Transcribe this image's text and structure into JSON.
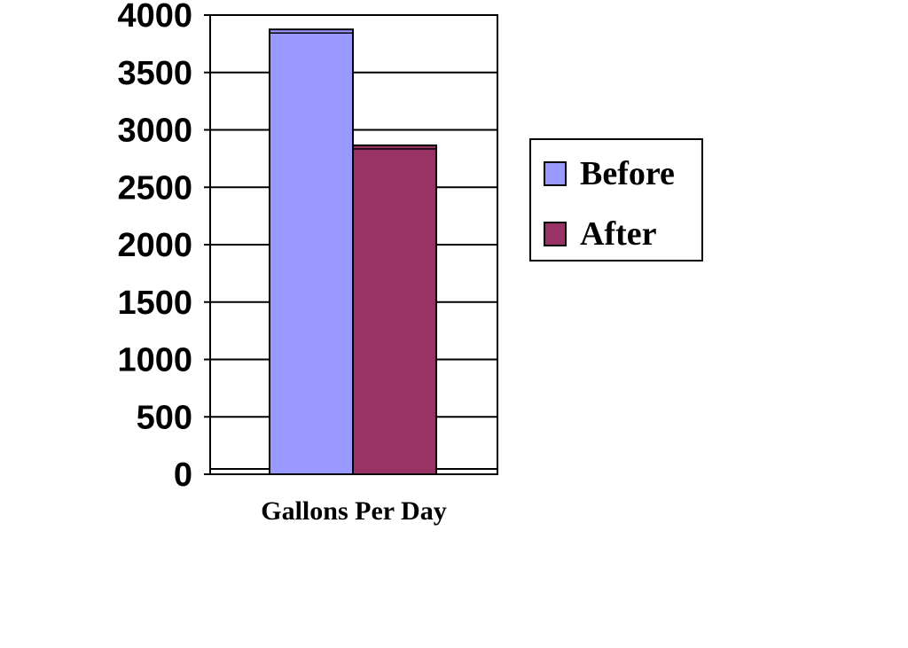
{
  "chart_data": {
    "type": "bar",
    "categories": [
      "Gallons Per Day"
    ],
    "series": [
      {
        "name": "Before",
        "values": [
          3875
        ],
        "color": "#9999FF"
      },
      {
        "name": "After",
        "values": [
          2865
        ],
        "color": "#993366"
      }
    ],
    "ylim": [
      0,
      4000
    ],
    "yticks": [
      0,
      500,
      1000,
      1500,
      2000,
      2500,
      3000,
      3500,
      4000
    ],
    "grid": true,
    "legend": "right"
  }
}
